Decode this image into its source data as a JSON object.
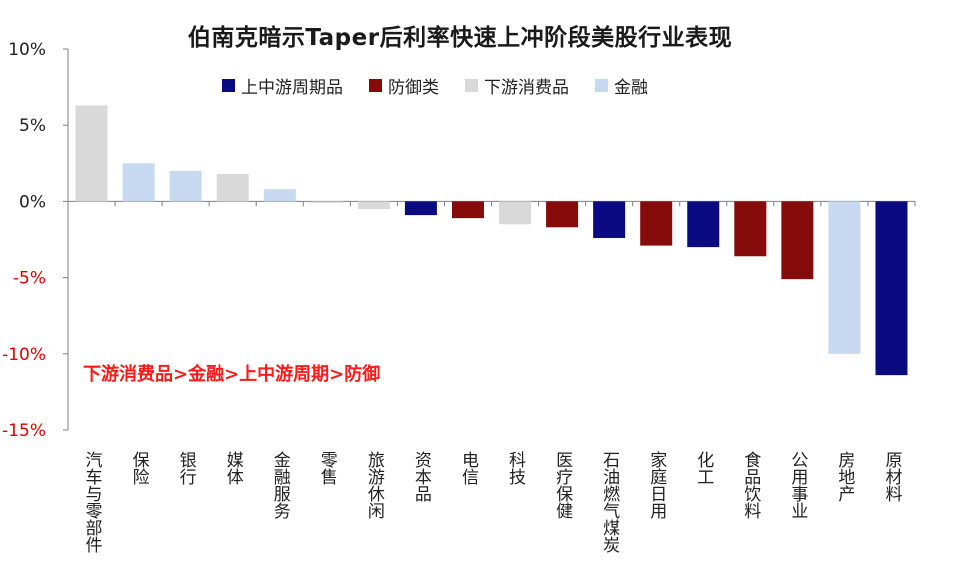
{
  "chart_data": {
    "type": "bar",
    "title": "伯南克暗示Taper后利率快速上冲阶段美股行业表现",
    "categories": [
      "汽车与零部件",
      "保险",
      "银行",
      "媒体",
      "金融服务",
      "零售",
      "旅游休闲",
      "资本品",
      "电信",
      "科技",
      "医疗保健",
      "石油燃气煤炭",
      "家庭日用",
      "化工",
      "食品饮料",
      "公用事业",
      "房地产",
      "原材料"
    ],
    "values": [
      6.3,
      2.5,
      2.0,
      1.8,
      0.8,
      -0.1,
      -0.5,
      -0.9,
      -1.1,
      -1.5,
      -1.7,
      -2.4,
      -2.9,
      -3.0,
      -3.6,
      -5.1,
      -10.0,
      -11.4
    ],
    "groups": [
      "下游消费品",
      "金融",
      "金融",
      "下游消费品",
      "金融",
      "下游消费品",
      "下游消费品",
      "上中游周期品",
      "防御类",
      "下游消费品",
      "防御类",
      "上中游周期品",
      "防御类",
      "上中游周期品",
      "防御类",
      "防御类",
      "金融",
      "上中游周期品"
    ],
    "legend": [
      {
        "name": "上中游周期品",
        "color": "#0a0a82"
      },
      {
        "name": "防御类",
        "color": "#860b0b"
      },
      {
        "name": "下游消费品",
        "color": "#d9d9d9"
      },
      {
        "name": "金融",
        "color": "#c6d9f1"
      }
    ],
    "ylim": [
      -15,
      10
    ],
    "yticks": [
      "10%",
      "5%",
      "0%",
      "-5%",
      "-10%",
      "-15%"
    ],
    "annotation": "下游消费品>金融>上中游周期>防御",
    "legend_position": "top",
    "grid": false
  }
}
